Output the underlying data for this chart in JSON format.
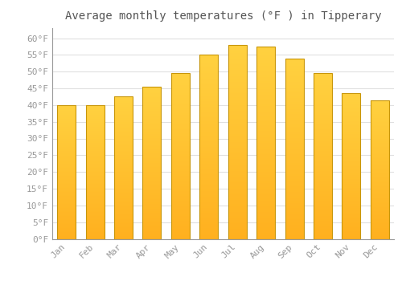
{
  "title": "Average monthly temperatures (°F ) in Tipperary",
  "months": [
    "Jan",
    "Feb",
    "Mar",
    "Apr",
    "May",
    "Jun",
    "Jul",
    "Aug",
    "Sep",
    "Oct",
    "Nov",
    "Dec"
  ],
  "values": [
    40.0,
    40.0,
    42.5,
    45.5,
    49.5,
    55.0,
    58.0,
    57.5,
    54.0,
    49.5,
    43.5,
    41.5
  ],
  "bar_color_top": "#FFD040",
  "bar_color_bottom": "#FFB020",
  "bar_edge_color": "#C8960A",
  "background_color": "#FFFFFF",
  "grid_color": "#E0E0E0",
  "ylim": [
    0,
    63
  ],
  "yticks": [
    0,
    5,
    10,
    15,
    20,
    25,
    30,
    35,
    40,
    45,
    50,
    55,
    60
  ],
  "title_fontsize": 10,
  "tick_fontsize": 8,
  "tick_color": "#999999",
  "title_color": "#555555"
}
